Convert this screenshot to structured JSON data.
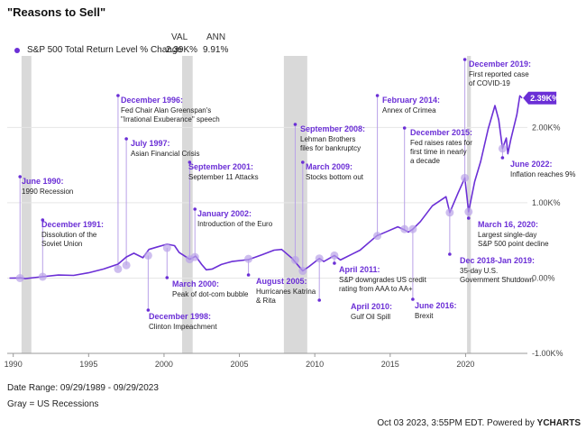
{
  "title": "\"Reasons to Sell\"",
  "legend": {
    "col_val": "VAL",
    "col_ann": "ANN",
    "series_label": "S&P 500 Total Return Level % Change",
    "val": "2.39K%",
    "ann": "9.91%"
  },
  "footer": {
    "date_range": "Date Range: 09/29/1989 - 09/29/2023",
    "gray_note": "Gray = US Recessions",
    "timestamp": "Oct 03 2023, 3:55PM EDT. Powered by ",
    "brand": "YCHARTS"
  },
  "colors": {
    "series": "#6b2fd6",
    "recession": "#d9d9d9",
    "marker": "#b9a2e8"
  },
  "chart_data": {
    "type": "line",
    "series": [
      {
        "name": "S&P 500 Total Return Level % Change",
        "points": [
          [
            1989.75,
            0
          ],
          [
            1990.5,
            2
          ],
          [
            1990.8,
            -8
          ],
          [
            1991.9,
            18
          ],
          [
            1993,
            40
          ],
          [
            1994,
            35
          ],
          [
            1995,
            70
          ],
          [
            1996,
            120
          ],
          [
            1996.95,
            185
          ],
          [
            1997.5,
            280
          ],
          [
            1998,
            330
          ],
          [
            1998.6,
            270
          ],
          [
            1999,
            380
          ],
          [
            1999.5,
            410
          ],
          [
            2000.2,
            450
          ],
          [
            2000.7,
            430
          ],
          [
            2001,
            340
          ],
          [
            2001.7,
            250
          ],
          [
            2002.1,
            290
          ],
          [
            2002.5,
            180
          ],
          [
            2002.8,
            110
          ],
          [
            2003.2,
            120
          ],
          [
            2003.8,
            180
          ],
          [
            2004.5,
            220
          ],
          [
            2005.6,
            245
          ],
          [
            2006.5,
            310
          ],
          [
            2007.3,
            370
          ],
          [
            2007.8,
            380
          ],
          [
            2008.5,
            260
          ],
          [
            2009.2,
            95
          ],
          [
            2009.6,
            150
          ],
          [
            2010.3,
            260
          ],
          [
            2010.6,
            220
          ],
          [
            2011.3,
            300
          ],
          [
            2011.7,
            240
          ],
          [
            2012.5,
            320
          ],
          [
            2013,
            370
          ],
          [
            2014.1,
            560
          ],
          [
            2014.8,
            620
          ],
          [
            2015.5,
            680
          ],
          [
            2015.95,
            640
          ],
          [
            2016.2,
            610
          ],
          [
            2016.5,
            650
          ],
          [
            2017,
            750
          ],
          [
            2017.8,
            960
          ],
          [
            2018.7,
            1080
          ],
          [
            2018.95,
            870
          ],
          [
            2019.5,
            1130
          ],
          [
            2019.95,
            1330
          ],
          [
            2020.2,
            880
          ],
          [
            2020.6,
            1280
          ],
          [
            2021,
            1550
          ],
          [
            2021.5,
            1980
          ],
          [
            2021.95,
            2290
          ],
          [
            2022.2,
            2100
          ],
          [
            2022.45,
            1720
          ],
          [
            2022.7,
            1860
          ],
          [
            2022.8,
            1650
          ],
          [
            2023,
            1840
          ],
          [
            2023.4,
            2170
          ],
          [
            2023.6,
            2420
          ],
          [
            2023.75,
            2390
          ]
        ]
      }
    ],
    "x_ticks": [
      "1990",
      "1995",
      "2000",
      "2005",
      "2010",
      "2015",
      "2020"
    ],
    "x_tick_values": [
      1990,
      1995,
      2000,
      2005,
      2010,
      2015,
      2020
    ],
    "y_ticks": [
      "-1.00K%",
      "0.00%",
      "1.00K%",
      "2.00K%"
    ],
    "y_tick_values": [
      -1000,
      0,
      1000,
      2000
    ],
    "xlim": [
      1989.6,
      2024.1
    ],
    "ylim": [
      -1000,
      2950
    ],
    "last_value_label": "2.39K%",
    "last_value": 2390,
    "recessions": [
      [
        1990.55,
        1991.2
      ],
      [
        2001.2,
        2001.9
      ],
      [
        2007.95,
        2009.5
      ],
      [
        2020.1,
        2020.35
      ]
    ],
    "annotations": [
      {
        "title": "June 1990:",
        "desc": [
          "1990 Recession"
        ],
        "x": 1990.45,
        "y": 0
      },
      {
        "title": "December 1991:",
        "desc": [
          "Dissolution of the",
          "Soviet Union"
        ],
        "x": 1991.95,
        "y": 18
      },
      {
        "title": "December 1996:",
        "desc": [
          "Fed Chair Alan Greenspan's",
          "\"Irrational Exuberance\" speech"
        ],
        "x": 1996.95,
        "y": 120
      },
      {
        "title": "July 1997:",
        "desc": [
          "Asian Financial Crisis"
        ],
        "x": 1997.5,
        "y": 170
      },
      {
        "title": "December 1998:",
        "desc": [
          "Clinton Impeachment"
        ],
        "x": 1998.95,
        "y": 300
      },
      {
        "title": "March 2000:",
        "desc": [
          "Peak of dot-com bubble"
        ],
        "x": 2000.2,
        "y": 400
      },
      {
        "title": "September 2001:",
        "desc": [
          "September 11 Attacks"
        ],
        "x": 2001.7,
        "y": 250
      },
      {
        "title": "January 2002:",
        "desc": [
          "Introduction of the Euro"
        ],
        "x": 2002.05,
        "y": 280
      },
      {
        "title": "August 2005:",
        "desc": [
          "Hurricanes Katrina",
          "& Rita"
        ],
        "x": 2005.6,
        "y": 255
      },
      {
        "title": "September 2008:",
        "desc": [
          "Lehman Brothers",
          "files for bankruptcy"
        ],
        "x": 2008.7,
        "y": 240
      },
      {
        "title": "March 2009:",
        "desc": [
          "Stocks bottom out"
        ],
        "x": 2009.2,
        "y": 95
      },
      {
        "title": "April 2010:",
        "desc": [
          "Gulf Oil Spill"
        ],
        "x": 2010.3,
        "y": 260
      },
      {
        "title": "April 2011:",
        "desc": [
          "S&P downgrades US credit",
          "rating from AAA to AA+"
        ],
        "x": 2011.3,
        "y": 300
      },
      {
        "title": "February 2014:",
        "desc": [
          "Annex of Crimea"
        ],
        "x": 2014.15,
        "y": 560
      },
      {
        "title": "December 2015:",
        "desc": [
          "Fed raises rates for",
          "first time in nearly",
          "a decade"
        ],
        "x": 2015.95,
        "y": 650
      },
      {
        "title": "June 2016:",
        "desc": [
          "Brexit"
        ],
        "x": 2016.5,
        "y": 650
      },
      {
        "title": "Dec 2018-Jan 2019:",
        "desc": [
          "35-day U.S.",
          "Government Shutdown"
        ],
        "x": 2018.95,
        "y": 870
      },
      {
        "title": "December 2019:",
        "desc": [
          "First reported case",
          "of COVID-19"
        ],
        "x": 2019.95,
        "y": 1330
      },
      {
        "title": "March 16, 2020:",
        "desc": [
          "Largest single-day",
          "S&P 500 point decline"
        ],
        "x": 2020.2,
        "y": 880
      },
      {
        "title": "June 2022:",
        "desc": [
          "Inflation reaches 9%"
        ],
        "x": 2022.45,
        "y": 1720
      }
    ]
  }
}
